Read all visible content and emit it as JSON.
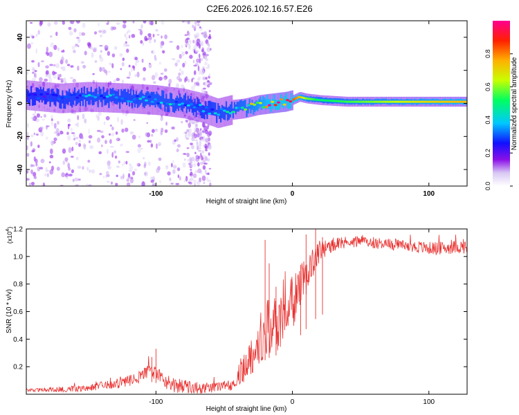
{
  "title": "C2E6.2026.102.16.57.E26",
  "colors": {
    "snr_line": "#e8312f",
    "axis": "#000000",
    "gradient": [
      "#ffffff",
      "#c8b8f0",
      "#7a00e0",
      "#1010ff",
      "#00c8ff",
      "#00ff60",
      "#c8ff00",
      "#ffb000",
      "#ff2000",
      "#ff0090"
    ]
  },
  "chart_data": [
    {
      "type": "heatmap",
      "name": "spectrogram",
      "xlabel": "Height of straight line (km)",
      "ylabel": "Frequency (Hz)",
      "xlim": [
        -195,
        128
      ],
      "ylim": [
        -50,
        50
      ],
      "xticks": [
        -100,
        0,
        100
      ],
      "xtick_labels": [
        "-100",
        "0",
        "100"
      ],
      "yticks": [
        -40,
        -20,
        0,
        20,
        40
      ],
      "ytick_labels": [
        "-40",
        "-20",
        "0",
        "20",
        "40"
      ],
      "colorbar": {
        "label": "Normalized spectral amplitude",
        "range": [
          0,
          1
        ],
        "ticks": [
          0.0,
          0.2,
          0.4,
          0.6,
          0.8
        ],
        "tick_labels": [
          "0.0",
          "0.2",
          "0.4",
          "0.6",
          "0.8"
        ]
      },
      "ridge": {
        "x": [
          -195,
          -170,
          -150,
          -120,
          -100,
          -80,
          -65,
          -55,
          -45,
          -35,
          -25,
          -15,
          -5,
          0,
          5,
          10,
          20,
          40,
          60,
          80,
          100,
          128
        ],
        "freq": [
          5,
          3,
          4,
          3,
          2,
          0,
          -3,
          -6,
          -4,
          -3,
          -1,
          0,
          1,
          2,
          4,
          3,
          2,
          1,
          1,
          1,
          1,
          1
        ],
        "amplitude": [
          0.25,
          0.3,
          0.35,
          0.35,
          0.4,
          0.35,
          0.3,
          0.35,
          0.4,
          0.5,
          0.65,
          0.85,
          0.9,
          0.85,
          0.75,
          0.6,
          0.5,
          0.55,
          0.6,
          0.65,
          0.7,
          0.75
        ]
      }
    },
    {
      "type": "line",
      "name": "snr",
      "xlabel": "Height of straight line (km)",
      "ylabel": "SNR (10 * v/v)",
      "y_multiplier_label": "(x10",
      "y_multiplier_exp": "4",
      "y_multiplier_close": ")",
      "xlim": [
        -195,
        128
      ],
      "ylim": [
        0,
        1.2
      ],
      "xticks": [
        -100,
        0,
        100
      ],
      "xtick_labels": [
        "-100",
        "0",
        "100"
      ],
      "yticks": [
        0.2,
        0.4,
        0.6,
        0.8,
        1.0,
        1.2
      ],
      "ytick_labels": [
        "0.2",
        "0.4",
        "0.6",
        "0.8",
        "1.0",
        "1.2"
      ],
      "envelope": {
        "x": [
          -195,
          -170,
          -150,
          -140,
          -125,
          -115,
          -105,
          -98,
          -90,
          -80,
          -70,
          -55,
          -45,
          -40,
          -35,
          -30,
          -25,
          -20,
          -15,
          -10,
          -5,
          0,
          5,
          10,
          15,
          20,
          25,
          30,
          40,
          50,
          60,
          70,
          80,
          90,
          100,
          110,
          120,
          128
        ],
        "y": [
          0.03,
          0.035,
          0.05,
          0.06,
          0.08,
          0.11,
          0.17,
          0.14,
          0.08,
          0.05,
          0.045,
          0.05,
          0.08,
          0.14,
          0.2,
          0.28,
          0.38,
          0.45,
          0.5,
          0.52,
          0.58,
          0.66,
          0.76,
          0.86,
          0.96,
          1.04,
          1.07,
          1.08,
          1.1,
          1.11,
          1.1,
          1.09,
          1.08,
          1.07,
          1.06,
          1.06,
          1.07,
          1.07
        ]
      },
      "noise": {
        "x": [
          -195,
          -120,
          -90,
          -50,
          -40,
          -20,
          0,
          20,
          40,
          128
        ],
        "amp": [
          0.01,
          0.04,
          0.06,
          0.03,
          0.08,
          0.22,
          0.2,
          0.08,
          0.04,
          0.05
        ]
      },
      "peaks": [
        {
          "x": -20,
          "y": 1.12
        },
        {
          "x": -17,
          "y": 0.95
        },
        {
          "x": -12,
          "y": 0.78
        },
        {
          "x": 6,
          "y": 0.94
        },
        {
          "x": 10,
          "y": 1.16
        },
        {
          "x": 17,
          "y": 1.2
        },
        {
          "x": 22,
          "y": 1.14
        },
        {
          "x": -100,
          "y": 0.33
        },
        {
          "x": -103,
          "y": 0.27
        }
      ]
    }
  ]
}
